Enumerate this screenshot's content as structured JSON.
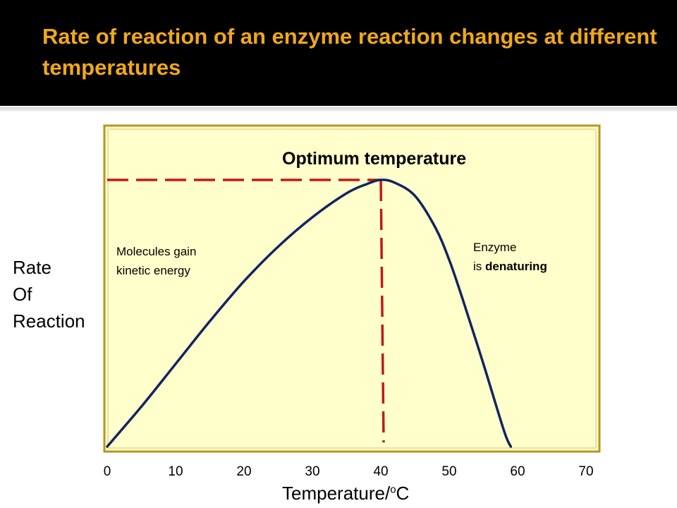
{
  "slide": {
    "title": "Rate of reaction of an enzyme reaction changes at different temperatures"
  },
  "chart_data": {
    "type": "line",
    "title": "",
    "xlabel": {
      "text": "Temperature/",
      "sup": "o",
      "unit": "C"
    },
    "ylabel_lines": [
      "Rate",
      "Of",
      "Reaction"
    ],
    "xlim": [
      0,
      70
    ],
    "x_ticks": [
      0,
      10,
      20,
      30,
      40,
      50,
      60,
      70
    ],
    "grid": false,
    "legend": false,
    "series": [
      {
        "color": "#13245e",
        "x": [
          0,
          5,
          10,
          15,
          20,
          25,
          30,
          35,
          38,
          40,
          42,
          45,
          48,
          50,
          52,
          55,
          58,
          59
        ],
        "y": [
          0,
          0.15,
          0.31,
          0.47,
          0.62,
          0.75,
          0.86,
          0.95,
          0.985,
          1.0,
          0.99,
          0.94,
          0.82,
          0.7,
          0.55,
          0.31,
          0.06,
          0
        ]
      }
    ],
    "optimum": {
      "x": 40,
      "label": "Optimum temperature",
      "line_color": "#c01a1a"
    },
    "annotations": {
      "rising": [
        "Molecules gain",
        "kinetic energy"
      ],
      "falling": {
        "line1": "Enzyme",
        "line2_prefix": "is ",
        "line2_bold": "denaturing"
      }
    },
    "colors": {
      "plot_background": "#ffffcc",
      "plot_border": "#b8961e"
    }
  }
}
